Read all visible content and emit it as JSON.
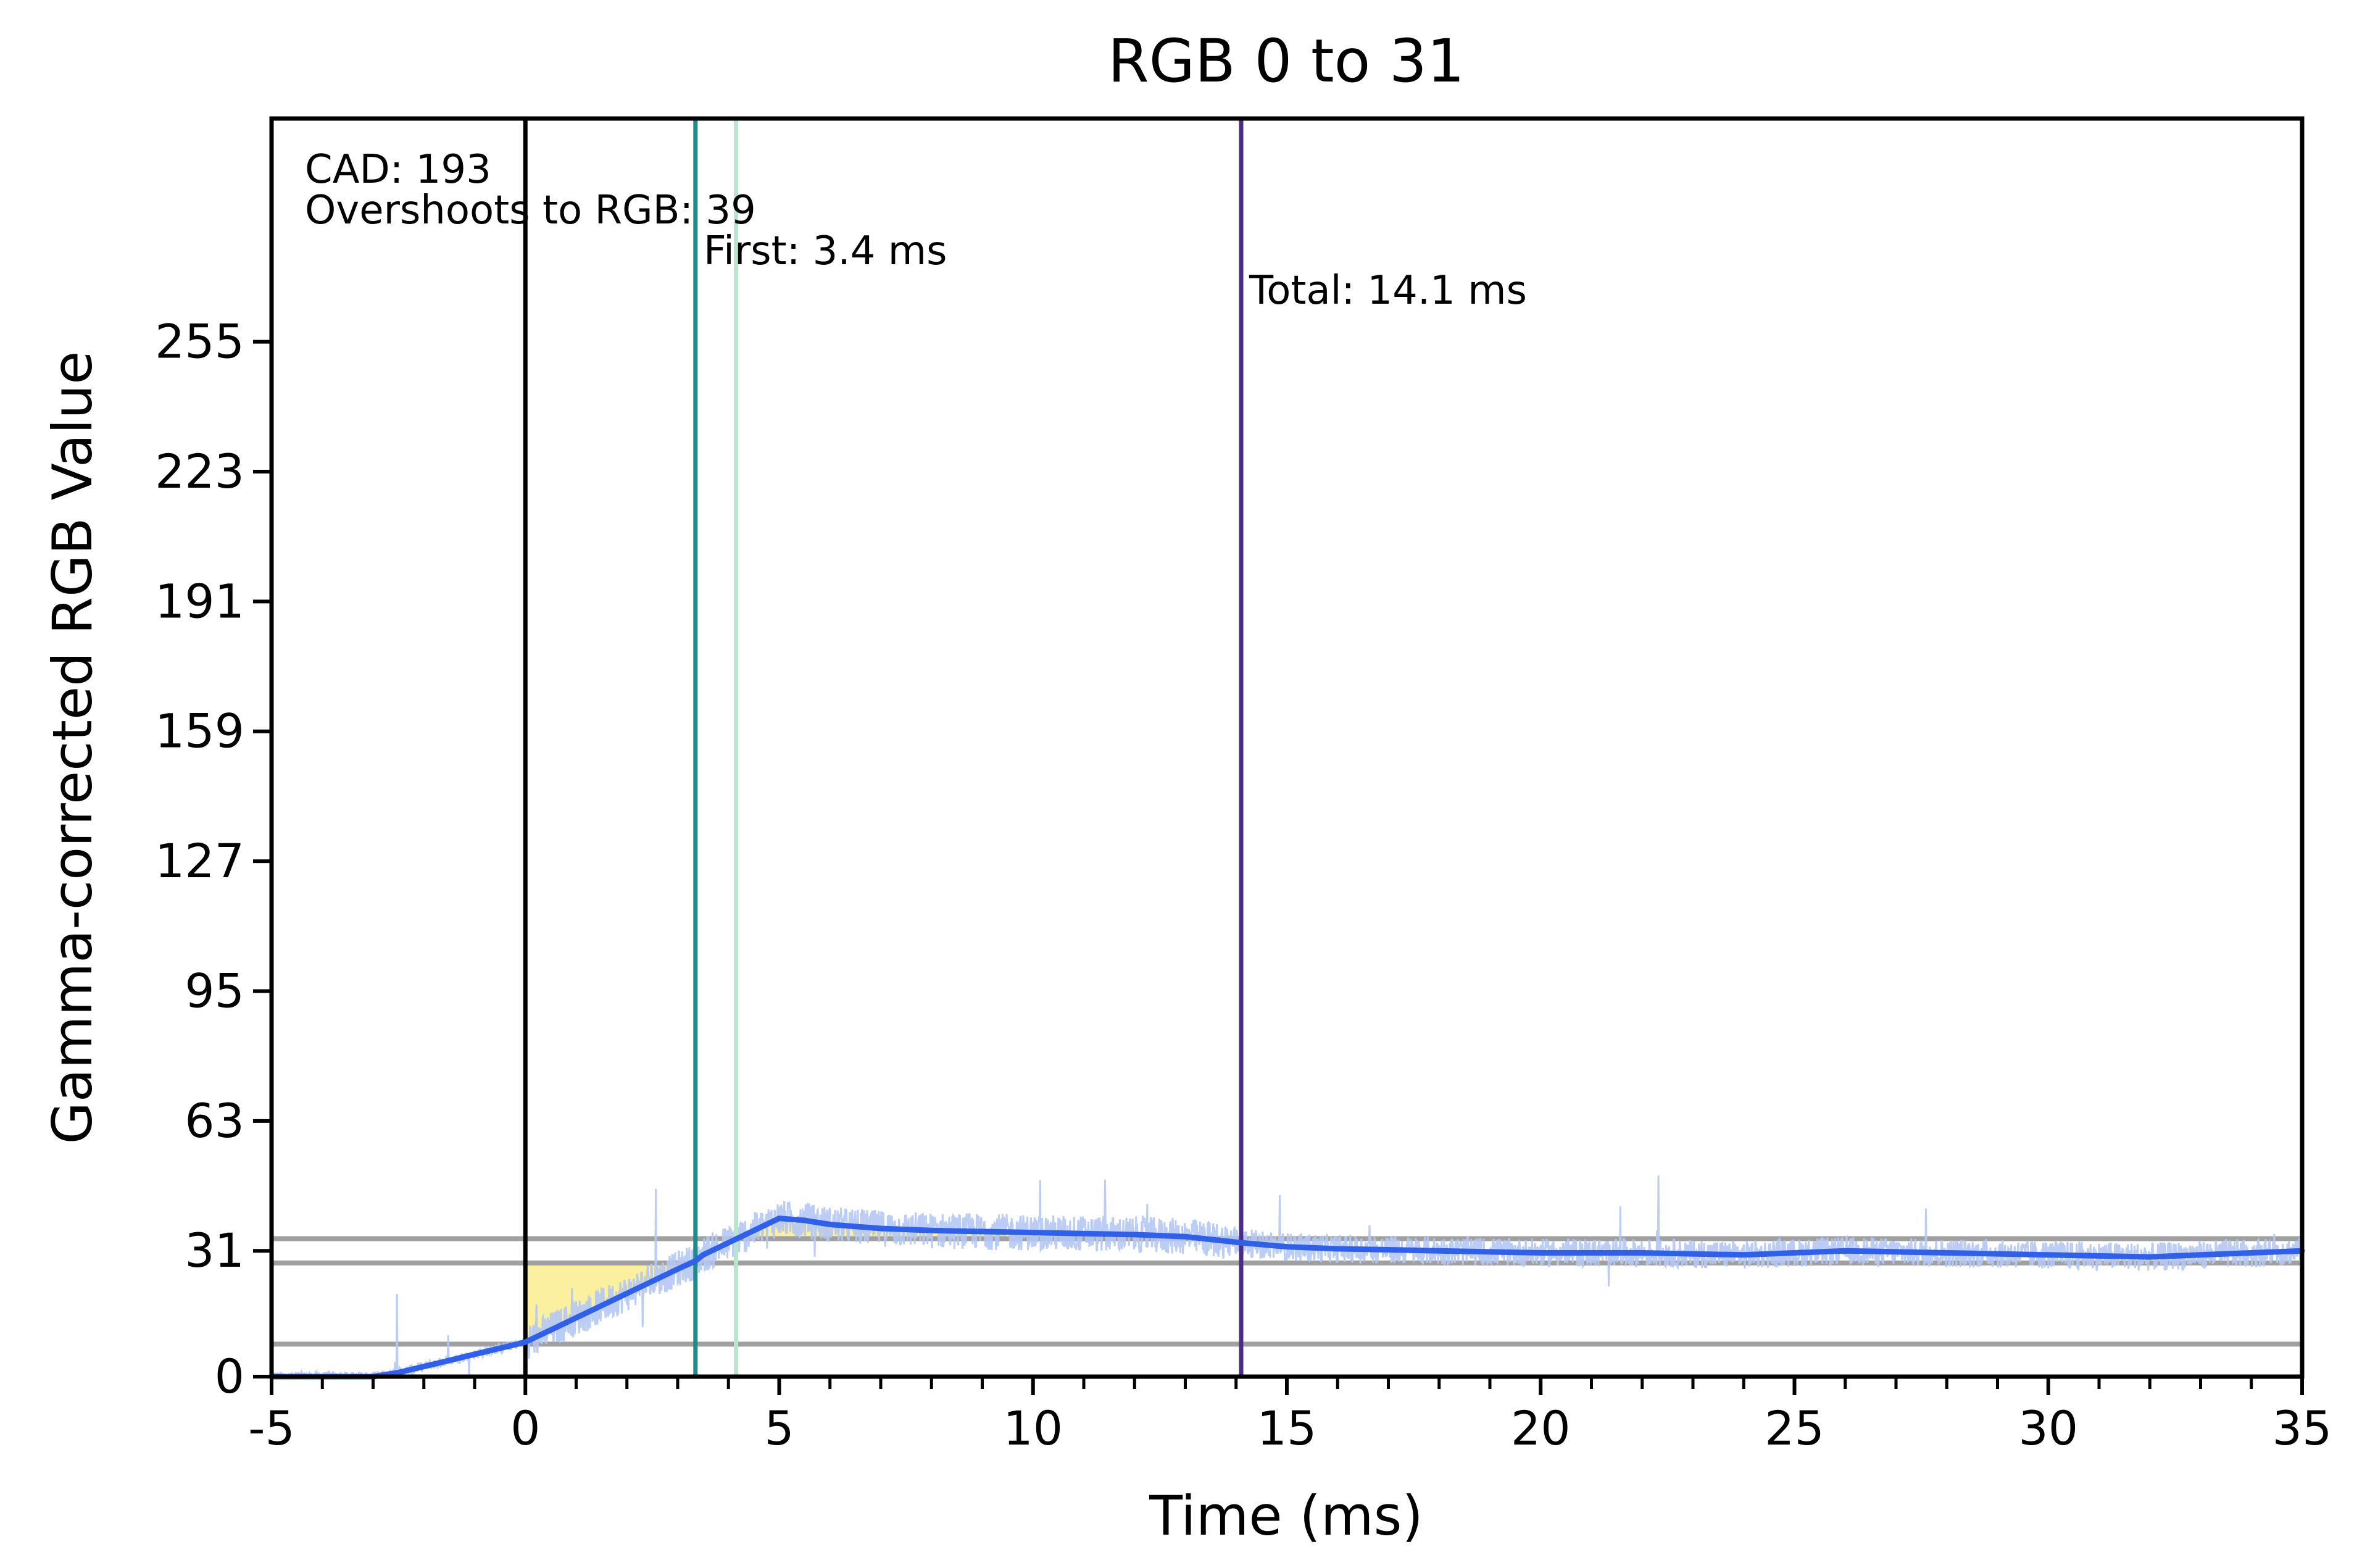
{
  "chart_data": {
    "type": "line",
    "title": "RGB 0 to 31",
    "xlabel": "Time (ms)",
    "ylabel": "Gamma-corrected RGB Value",
    "xlim": [
      -5,
      35
    ],
    "ylim": [
      0,
      310
    ],
    "x_ticks": [
      -5,
      0,
      5,
      10,
      15,
      20,
      25,
      30,
      35
    ],
    "y_ticks": [
      0,
      31,
      63,
      95,
      127,
      159,
      191,
      223,
      255
    ],
    "grid": false,
    "legend": "none",
    "annotations": [
      {
        "id": "cad",
        "text": "CAD: 193"
      },
      {
        "id": "overshoot",
        "text": "Overshoots to RGB: 39"
      },
      {
        "id": "first",
        "text": "First: 3.4 ms"
      },
      {
        "id": "total",
        "text": "Total: 14.1 ms"
      }
    ],
    "horizontal_lines": [
      {
        "id": "tolerance-upper",
        "y": 34,
        "color": "#a0a0a0"
      },
      {
        "id": "tolerance-lower",
        "y": 28,
        "color": "#a0a0a0"
      },
      {
        "id": "baseline-threshold",
        "y": 8,
        "color": "#a0a0a0"
      }
    ],
    "vertical_lines": [
      {
        "id": "start",
        "x": 0,
        "color": "#000000"
      },
      {
        "id": "first-response",
        "x": 3.35,
        "color": "#1f8a8a"
      },
      {
        "id": "first-response-end",
        "x": 4.15,
        "color": "#b8e6cc"
      },
      {
        "id": "total-response",
        "x": 14.1,
        "color": "#4b2a8c"
      }
    ],
    "shaded_region": {
      "x_start": 0,
      "x_end": 3.35,
      "y_top": 28,
      "color": "#fbf0a0"
    },
    "overshoot_fill": {
      "x_start": 4.15,
      "x_end": 14.1,
      "y_base": 34,
      "color": "#fbf0a0"
    },
    "series": [
      {
        "id": "smoothed",
        "color": "#3060e8",
        "x": [
          -5,
          -4,
          -3,
          -2.5,
          -2,
          -1.5,
          -1,
          -0.5,
          0,
          0.5,
          1,
          1.5,
          2,
          2.5,
          3,
          3.35,
          3.5,
          4,
          4.5,
          5,
          5.5,
          6,
          7,
          8,
          10,
          12,
          13,
          14.1,
          15,
          16,
          18,
          20,
          22,
          24,
          26,
          28,
          30,
          32,
          33,
          34,
          35
        ],
        "values": [
          0,
          0,
          0,
          1,
          2.5,
          4,
          5.5,
          7,
          8.5,
          11.5,
          14.5,
          17.5,
          20.5,
          23.5,
          26.5,
          28.5,
          30,
          33,
          36,
          39,
          38.5,
          37.5,
          36.5,
          36,
          35.5,
          35,
          34.5,
          33,
          32,
          31.5,
          31,
          30.5,
          30.5,
          30,
          31,
          30.5,
          30,
          29.5,
          30,
          30.5,
          31
        ]
      }
    ],
    "raw_noise_color": "#b4c6f4"
  }
}
